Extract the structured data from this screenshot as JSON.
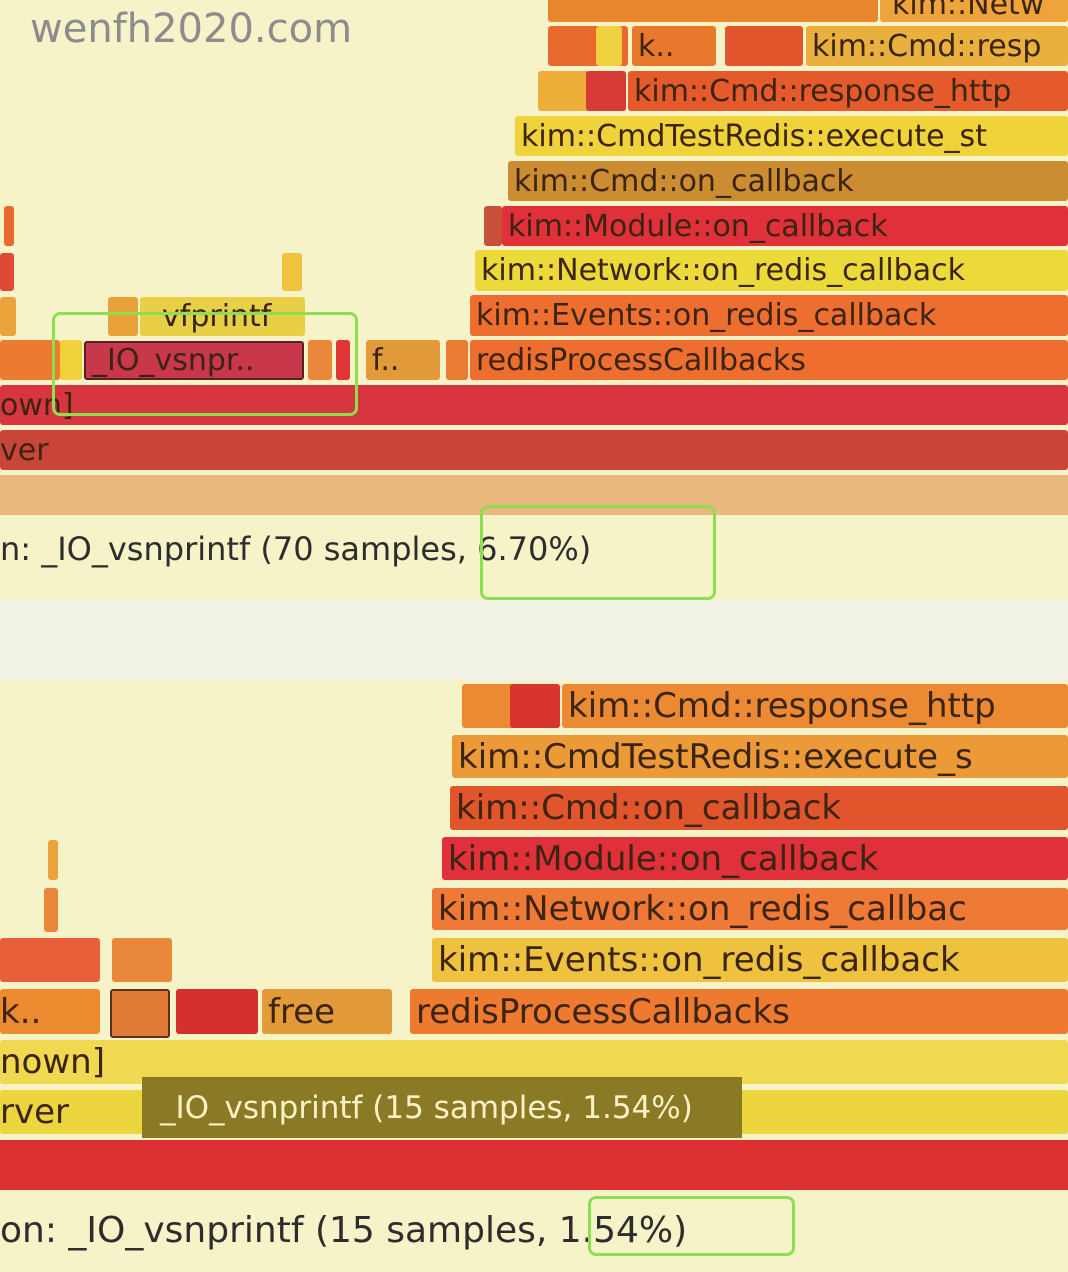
{
  "watermark": "wenfh2020.com",
  "panels": [
    {
      "frames": [
        "kim::Netw",
        "k..",
        "kim::Cmd::resp",
        "kim::Cmd::response_http",
        "kim::CmdTestRedis::execute_st",
        "kim::Cmd::on_callback",
        "kim::Module::on_callback",
        "kim::Network::on_redis_callback",
        "kim::Events::on_redis_callback",
        "vfprintf",
        "_IO_vsnpr..",
        "f..",
        "redisProcessCallbacks",
        "own]",
        "ver"
      ],
      "status": "n: _IO_vsnprintf (70 samples, 6.70%)"
    },
    {
      "frames": [
        "kim::Cmd::response_http",
        "kim::CmdTestRedis::execute_s",
        "kim::Cmd::on_callback",
        "kim::Module::on_callback",
        "kim::Network::on_redis_callbac",
        "kim::Events::on_redis_callback",
        "k..",
        "free",
        "redisProcessCallbacks",
        "nown]",
        "rver"
      ],
      "tooltip": "_IO_vsnprintf (15 samples, 1.54%)",
      "status": "on: _IO_vsnprintf (15 samples, 1.54%)"
    }
  ]
}
